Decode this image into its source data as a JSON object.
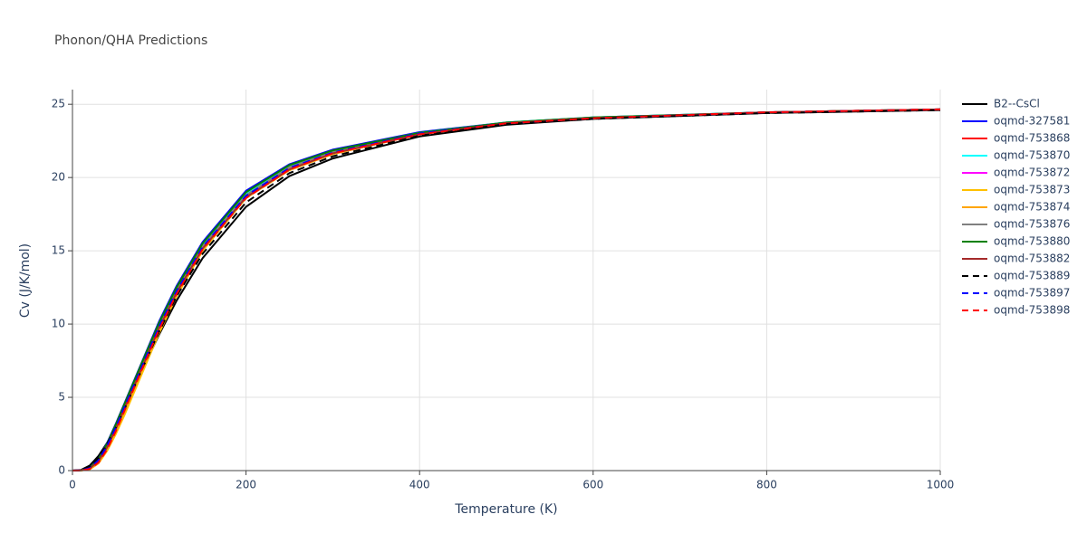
{
  "chart_data": {
    "type": "line",
    "title": "Phonon/QHA Predictions",
    "x_label": "Temperature (K)",
    "y_label": "Cv (J/K/mol)",
    "xlim": [
      0,
      1000
    ],
    "xticks": [
      0,
      200,
      400,
      600,
      800,
      1000
    ],
    "ylim": [
      0,
      26
    ],
    "yticks": [
      0,
      5,
      10,
      15,
      20,
      25
    ],
    "grid": true,
    "x": [
      0,
      10,
      20,
      30,
      40,
      50,
      60,
      80,
      100,
      120,
      150,
      200,
      250,
      300,
      400,
      500,
      600,
      800,
      1000
    ],
    "series": [
      {
        "name": "B2--CsCl",
        "color": "#000000",
        "dash": "solid",
        "values": [
          0,
          0.05,
          0.35,
          1.0,
          1.9,
          3.0,
          4.2,
          6.8,
          9.3,
          11.6,
          14.5,
          18.0,
          20.1,
          21.3,
          22.8,
          23.6,
          24.0,
          24.4,
          24.6
        ]
      },
      {
        "name": "oqmd-327581",
        "color": "#0000ff",
        "dash": "solid",
        "values": [
          0,
          0.02,
          0.2,
          0.8,
          1.9,
          3.2,
          4.6,
          7.4,
          10.2,
          12.6,
          15.6,
          19.1,
          20.9,
          21.9,
          23.1,
          23.75,
          24.1,
          24.45,
          24.65
        ]
      },
      {
        "name": "oqmd-753868",
        "color": "#ff0000",
        "dash": "solid",
        "values": [
          0,
          0.01,
          0.1,
          0.5,
          1.4,
          2.6,
          4.0,
          6.9,
          9.7,
          12.1,
          15.1,
          18.6,
          20.5,
          21.6,
          22.95,
          23.7,
          24.05,
          24.45,
          24.65
        ]
      },
      {
        "name": "oqmd-753870",
        "color": "#00ffff",
        "dash": "solid",
        "values": [
          0,
          0.02,
          0.18,
          0.75,
          1.8,
          3.1,
          4.5,
          7.3,
          10.0,
          12.4,
          15.4,
          18.9,
          20.8,
          21.8,
          23.05,
          23.75,
          24.1,
          24.45,
          24.65
        ]
      },
      {
        "name": "oqmd-753872",
        "color": "#ff00ff",
        "dash": "solid",
        "values": [
          0,
          0.02,
          0.15,
          0.65,
          1.65,
          2.9,
          4.3,
          7.1,
          9.8,
          12.2,
          15.2,
          18.7,
          20.6,
          21.7,
          23.0,
          23.7,
          24.05,
          24.45,
          24.65
        ]
      },
      {
        "name": "oqmd-753873",
        "color": "#ffc000",
        "dash": "solid",
        "values": [
          0,
          0.01,
          0.1,
          0.5,
          1.35,
          2.5,
          3.8,
          6.6,
          9.4,
          11.9,
          15.0,
          18.6,
          20.5,
          21.6,
          22.95,
          23.7,
          24.05,
          24.45,
          24.65
        ]
      },
      {
        "name": "oqmd-753874",
        "color": "#ffa500",
        "dash": "solid",
        "values": [
          0,
          0.01,
          0.12,
          0.55,
          1.45,
          2.65,
          4.0,
          6.85,
          9.6,
          12.0,
          15.1,
          18.7,
          20.6,
          21.65,
          23.0,
          23.7,
          24.05,
          24.45,
          24.65
        ]
      },
      {
        "name": "oqmd-753876",
        "color": "#808080",
        "dash": "solid",
        "values": [
          0,
          0.02,
          0.16,
          0.7,
          1.7,
          3.0,
          4.4,
          7.2,
          9.9,
          12.3,
          15.3,
          18.8,
          20.7,
          21.75,
          23.0,
          23.7,
          24.05,
          24.45,
          24.65
        ]
      },
      {
        "name": "oqmd-753880",
        "color": "#008000",
        "dash": "solid",
        "values": [
          0,
          0.02,
          0.19,
          0.78,
          1.85,
          3.15,
          4.55,
          7.35,
          10.1,
          12.5,
          15.5,
          19.0,
          20.85,
          21.85,
          23.05,
          23.75,
          24.1,
          24.45,
          24.65
        ]
      },
      {
        "name": "oqmd-753882",
        "color": "#a52a2a",
        "dash": "solid",
        "values": [
          0,
          0.02,
          0.15,
          0.65,
          1.6,
          2.85,
          4.25,
          7.0,
          9.75,
          12.15,
          15.15,
          18.65,
          20.55,
          21.65,
          22.95,
          23.7,
          24.05,
          24.45,
          24.65
        ]
      },
      {
        "name": "oqmd-753889",
        "color": "#000000",
        "dash": "dash",
        "values": [
          0,
          0.03,
          0.25,
          0.85,
          1.8,
          2.95,
          4.2,
          6.9,
          9.5,
          11.9,
          14.8,
          18.3,
          20.3,
          21.45,
          22.85,
          23.65,
          24.0,
          24.4,
          24.6
        ]
      },
      {
        "name": "oqmd-753897",
        "color": "#0000ff",
        "dash": "dash",
        "values": [
          0,
          0.02,
          0.17,
          0.7,
          1.7,
          2.95,
          4.35,
          7.1,
          9.85,
          12.25,
          15.25,
          18.75,
          20.65,
          21.7,
          23.0,
          23.7,
          24.05,
          24.45,
          24.65
        ]
      },
      {
        "name": "oqmd-753898",
        "color": "#ff0000",
        "dash": "dash",
        "values": [
          0,
          0.01,
          0.12,
          0.55,
          1.45,
          2.7,
          4.1,
          6.9,
          9.65,
          12.05,
          15.1,
          18.6,
          20.55,
          21.65,
          22.95,
          23.7,
          24.05,
          24.45,
          24.65
        ]
      }
    ]
  }
}
